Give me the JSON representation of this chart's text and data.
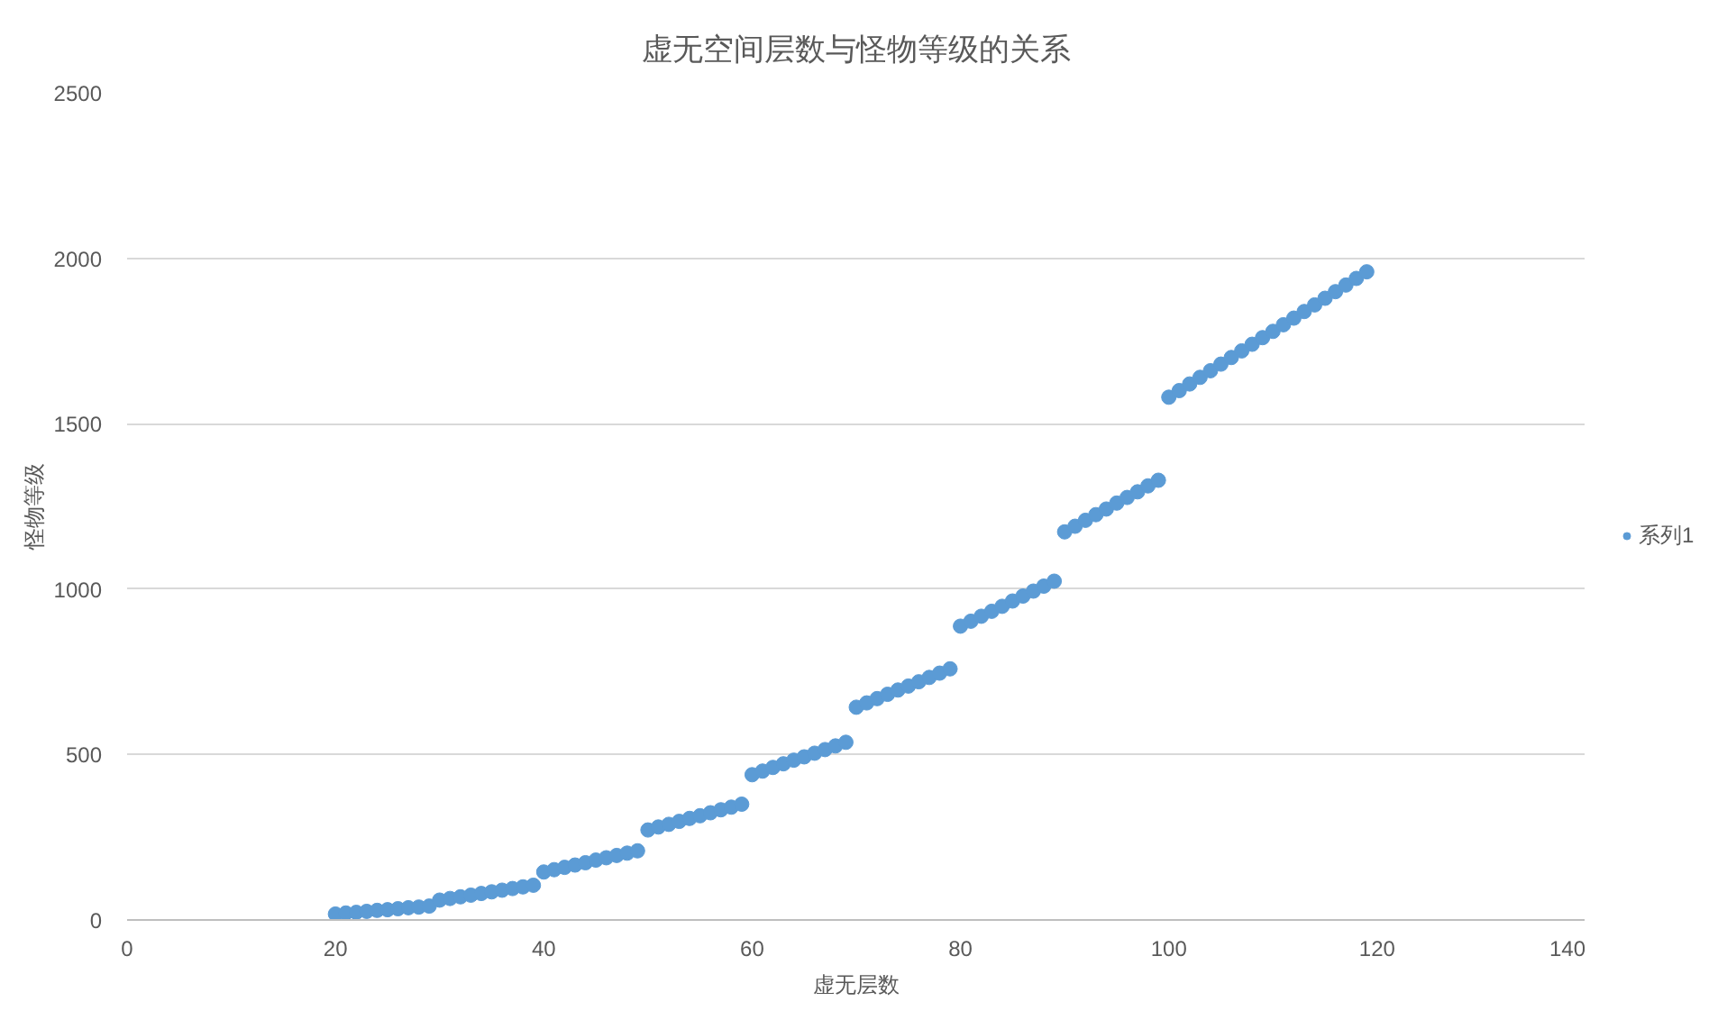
{
  "chart_data": {
    "type": "scatter",
    "title": "虚无空间层数与怪物等级的关系",
    "xlabel": "虚无层数",
    "ylabel": "怪物等级",
    "x": [
      20,
      21,
      22,
      23,
      24,
      25,
      26,
      27,
      28,
      29,
      30,
      31,
      32,
      33,
      34,
      35,
      36,
      37,
      38,
      39,
      40,
      41,
      42,
      43,
      44,
      45,
      46,
      47,
      48,
      49,
      50,
      51,
      52,
      53,
      54,
      55,
      56,
      57,
      58,
      59,
      60,
      61,
      62,
      63,
      64,
      65,
      66,
      67,
      68,
      69,
      70,
      71,
      72,
      73,
      74,
      75,
      76,
      77,
      78,
      79,
      80,
      81,
      82,
      83,
      84,
      85,
      86,
      87,
      88,
      89,
      90,
      91,
      92,
      93,
      94,
      95,
      96,
      97,
      98,
      99,
      100,
      101,
      102,
      103,
      104,
      105,
      106,
      107,
      108,
      109,
      110,
      111,
      112,
      113,
      114,
      115,
      116,
      117,
      118,
      119
    ],
    "series": [
      {
        "name": "系列1",
        "color": "#5b9bd5",
        "values": [
          18,
          21,
          23,
          26,
          29,
          31,
          34,
          37,
          39,
          42,
          60,
          65,
          70,
          75,
          80,
          85,
          90,
          95,
          100,
          105,
          145,
          152,
          159,
          166,
          173,
          181,
          188,
          195,
          202,
          209,
          272,
          281,
          289,
          298,
          307,
          315,
          324,
          333,
          341,
          350,
          439,
          450,
          461,
          472,
          483,
          493,
          504,
          515,
          526,
          537,
          643,
          656,
          669,
          682,
          695,
          707,
          720,
          733,
          746,
          759,
          888,
          903,
          918,
          933,
          948,
          964,
          979,
          994,
          1009,
          1024,
          1173,
          1190,
          1208,
          1225,
          1242,
          1260,
          1277,
          1294,
          1312,
          1329,
          1580,
          1600,
          1620,
          1640,
          1660,
          1680,
          1700,
          1720,
          1740,
          1760,
          1779,
          1799,
          1819,
          1839,
          1859,
          1879,
          1899,
          1919,
          1939,
          1959
        ]
      }
    ],
    "xlim": [
      0,
      140
    ],
    "xticks": [
      0,
      20,
      40,
      60,
      80,
      100,
      120,
      140
    ],
    "ylim": [
      0,
      2500
    ],
    "yticks": [
      0,
      500,
      1000,
      1500,
      2000,
      2500
    ],
    "grid": "y",
    "legend": "right",
    "marker": "circle"
  }
}
